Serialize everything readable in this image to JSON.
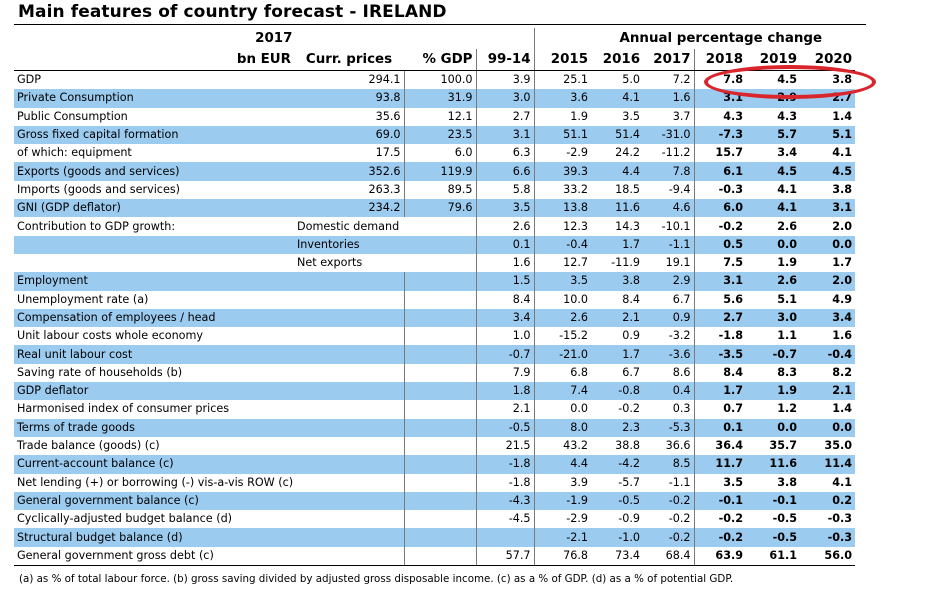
{
  "title": "Main features of country forecast - IRELAND",
  "header": {
    "year": "2017",
    "apc": "Annual percentage change",
    "cols": [
      "bn EUR",
      "Curr. prices",
      "% GDP",
      "99-14",
      "2015",
      "2016",
      "2017",
      "2018",
      "2019",
      "2020"
    ]
  },
  "rows": [
    {
      "label": "GDP",
      "sub": "",
      "curr": "294.1",
      "pct": "100.0",
      "v": [
        "3.9",
        "25.1",
        "5.0",
        "7.2"
      ],
      "f": [
        "7.8",
        "4.5",
        "3.8"
      ]
    },
    {
      "label": "Private Consumption",
      "sub": "",
      "curr": "93.8",
      "pct": "31.9",
      "v": [
        "3.0",
        "3.6",
        "4.1",
        "1.6"
      ],
      "f": [
        "3.1",
        "2.9",
        "2.7"
      ]
    },
    {
      "label": "Public Consumption",
      "sub": "",
      "curr": "35.6",
      "pct": "12.1",
      "v": [
        "2.7",
        "1.9",
        "3.5",
        "3.7"
      ],
      "f": [
        "4.3",
        "4.3",
        "1.4"
      ]
    },
    {
      "label": "Gross fixed capital formation",
      "sub": "",
      "curr": "69.0",
      "pct": "23.5",
      "v": [
        "3.1",
        "51.1",
        "51.4",
        "-31.0"
      ],
      "f": [
        "-7.3",
        "5.7",
        "5.1"
      ]
    },
    {
      "label": "of which: equipment",
      "sub": "",
      "curr": "17.5",
      "pct": "6.0",
      "v": [
        "6.3",
        "-2.9",
        "24.2",
        "-11.2"
      ],
      "f": [
        "15.7",
        "3.4",
        "4.1"
      ]
    },
    {
      "label": "Exports (goods and services)",
      "sub": "",
      "curr": "352.6",
      "pct": "119.9",
      "v": [
        "6.6",
        "39.3",
        "4.4",
        "7.8"
      ],
      "f": [
        "6.1",
        "4.5",
        "4.5"
      ]
    },
    {
      "label": "Imports (goods and services)",
      "sub": "",
      "curr": "263.3",
      "pct": "89.5",
      "v": [
        "5.8",
        "33.2",
        "18.5",
        "-9.4"
      ],
      "f": [
        "-0.3",
        "4.1",
        "3.8"
      ]
    },
    {
      "label": "GNI (GDP deflator)",
      "sub": "",
      "curr": "234.2",
      "pct": "79.6",
      "v": [
        "3.5",
        "13.8",
        "11.6",
        "4.6"
      ],
      "f": [
        "6.0",
        "4.1",
        "3.1"
      ]
    },
    {
      "label": "Contribution to GDP growth:",
      "sub": "Domestic demand",
      "curr": "",
      "pct": "",
      "v": [
        "2.6",
        "12.3",
        "14.3",
        "-10.1"
      ],
      "f": [
        "-0.2",
        "2.6",
        "2.0"
      ]
    },
    {
      "label": "",
      "sub": "Inventories",
      "curr": "",
      "pct": "",
      "v": [
        "0.1",
        "-0.4",
        "1.7",
        "-1.1"
      ],
      "f": [
        "0.5",
        "0.0",
        "0.0"
      ]
    },
    {
      "label": "",
      "sub": "Net exports",
      "curr": "",
      "pct": "",
      "v": [
        "1.6",
        "12.7",
        "-11.9",
        "19.1"
      ],
      "f": [
        "7.5",
        "1.9",
        "1.7"
      ]
    },
    {
      "label": "Employment",
      "sub": "",
      "curr": "",
      "pct": "",
      "v": [
        "1.5",
        "3.5",
        "3.8",
        "2.9"
      ],
      "f": [
        "3.1",
        "2.6",
        "2.0"
      ]
    },
    {
      "label": "Unemployment rate (a)",
      "sub": "",
      "curr": "",
      "pct": "",
      "v": [
        "8.4",
        "10.0",
        "8.4",
        "6.7"
      ],
      "f": [
        "5.6",
        "5.1",
        "4.9"
      ]
    },
    {
      "label": "Compensation of employees / head",
      "sub": "",
      "curr": "",
      "pct": "",
      "v": [
        "3.4",
        "2.6",
        "2.1",
        "0.9"
      ],
      "f": [
        "2.7",
        "3.0",
        "3.4"
      ]
    },
    {
      "label": "Unit labour costs whole economy",
      "sub": "",
      "curr": "",
      "pct": "",
      "v": [
        "1.0",
        "-15.2",
        "0.9",
        "-3.2"
      ],
      "f": [
        "-1.8",
        "1.1",
        "1.6"
      ]
    },
    {
      "label": "Real unit labour cost",
      "sub": "",
      "curr": "",
      "pct": "",
      "v": [
        "-0.7",
        "-21.0",
        "1.7",
        "-3.6"
      ],
      "f": [
        "-3.5",
        "-0.7",
        "-0.4"
      ]
    },
    {
      "label": "Saving rate of households (b)",
      "sub": "",
      "curr": "",
      "pct": "",
      "v": [
        "7.9",
        "6.8",
        "6.7",
        "8.6"
      ],
      "f": [
        "8.4",
        "8.3",
        "8.2"
      ]
    },
    {
      "label": "GDP deflator",
      "sub": "",
      "curr": "",
      "pct": "",
      "v": [
        "1.8",
        "7.4",
        "-0.8",
        "0.4"
      ],
      "f": [
        "1.7",
        "1.9",
        "2.1"
      ]
    },
    {
      "label": "Harmonised index of consumer prices",
      "sub": "",
      "curr": "",
      "pct": "",
      "v": [
        "2.1",
        "0.0",
        "-0.2",
        "0.3"
      ],
      "f": [
        "0.7",
        "1.2",
        "1.4"
      ]
    },
    {
      "label": "Terms of trade goods",
      "sub": "",
      "curr": "",
      "pct": "",
      "v": [
        "-0.5",
        "8.0",
        "2.3",
        "-5.3"
      ],
      "f": [
        "0.1",
        "0.0",
        "0.0"
      ]
    },
    {
      "label": "Trade balance (goods) (c)",
      "sub": "",
      "curr": "",
      "pct": "",
      "v": [
        "21.5",
        "43.2",
        "38.8",
        "36.6"
      ],
      "f": [
        "36.4",
        "35.7",
        "35.0"
      ]
    },
    {
      "label": "Current-account balance (c)",
      "sub": "",
      "curr": "",
      "pct": "",
      "v": [
        "-1.8",
        "4.4",
        "-4.2",
        "8.5"
      ],
      "f": [
        "11.7",
        "11.6",
        "11.4"
      ]
    },
    {
      "label": "Net lending (+) or borrowing (-) vis-a-vis ROW (c)",
      "sub": "",
      "curr": "",
      "pct": "",
      "v": [
        "-1.8",
        "3.9",
        "-5.7",
        "-1.1"
      ],
      "f": [
        "3.5",
        "3.8",
        "4.1"
      ]
    },
    {
      "label": "General government balance (c)",
      "sub": "",
      "curr": "",
      "pct": "",
      "v": [
        "-4.3",
        "-1.9",
        "-0.5",
        "-0.2"
      ],
      "f": [
        "-0.1",
        "-0.1",
        "0.2"
      ]
    },
    {
      "label": "Cyclically-adjusted budget balance (d)",
      "sub": "",
      "curr": "",
      "pct": "",
      "v": [
        "-4.5",
        "-2.9",
        "-0.9",
        "-0.2"
      ],
      "f": [
        "-0.2",
        "-0.5",
        "-0.3"
      ]
    },
    {
      "label": "Structural budget balance (d)",
      "sub": "",
      "curr": "",
      "pct": "",
      "v": [
        "",
        "-2.1",
        "-1.0",
        "-0.2"
      ],
      "f": [
        "-0.2",
        "-0.5",
        "-0.3"
      ]
    },
    {
      "label": "General government gross debt (c)",
      "sub": "",
      "curr": "",
      "pct": "",
      "v": [
        "57.7",
        "76.8",
        "73.4",
        "68.4"
      ],
      "f": [
        "63.9",
        "61.1",
        "56.0"
      ]
    }
  ],
  "footnote": "(a) as % of total labour force. (b) gross saving divided by adjusted gross disposable income.  (c) as a % of  GDP.  (d) as a % of  potential GDP.",
  "colors": {
    "band": "#9ccbf0",
    "highlight": "#d9262c"
  }
}
